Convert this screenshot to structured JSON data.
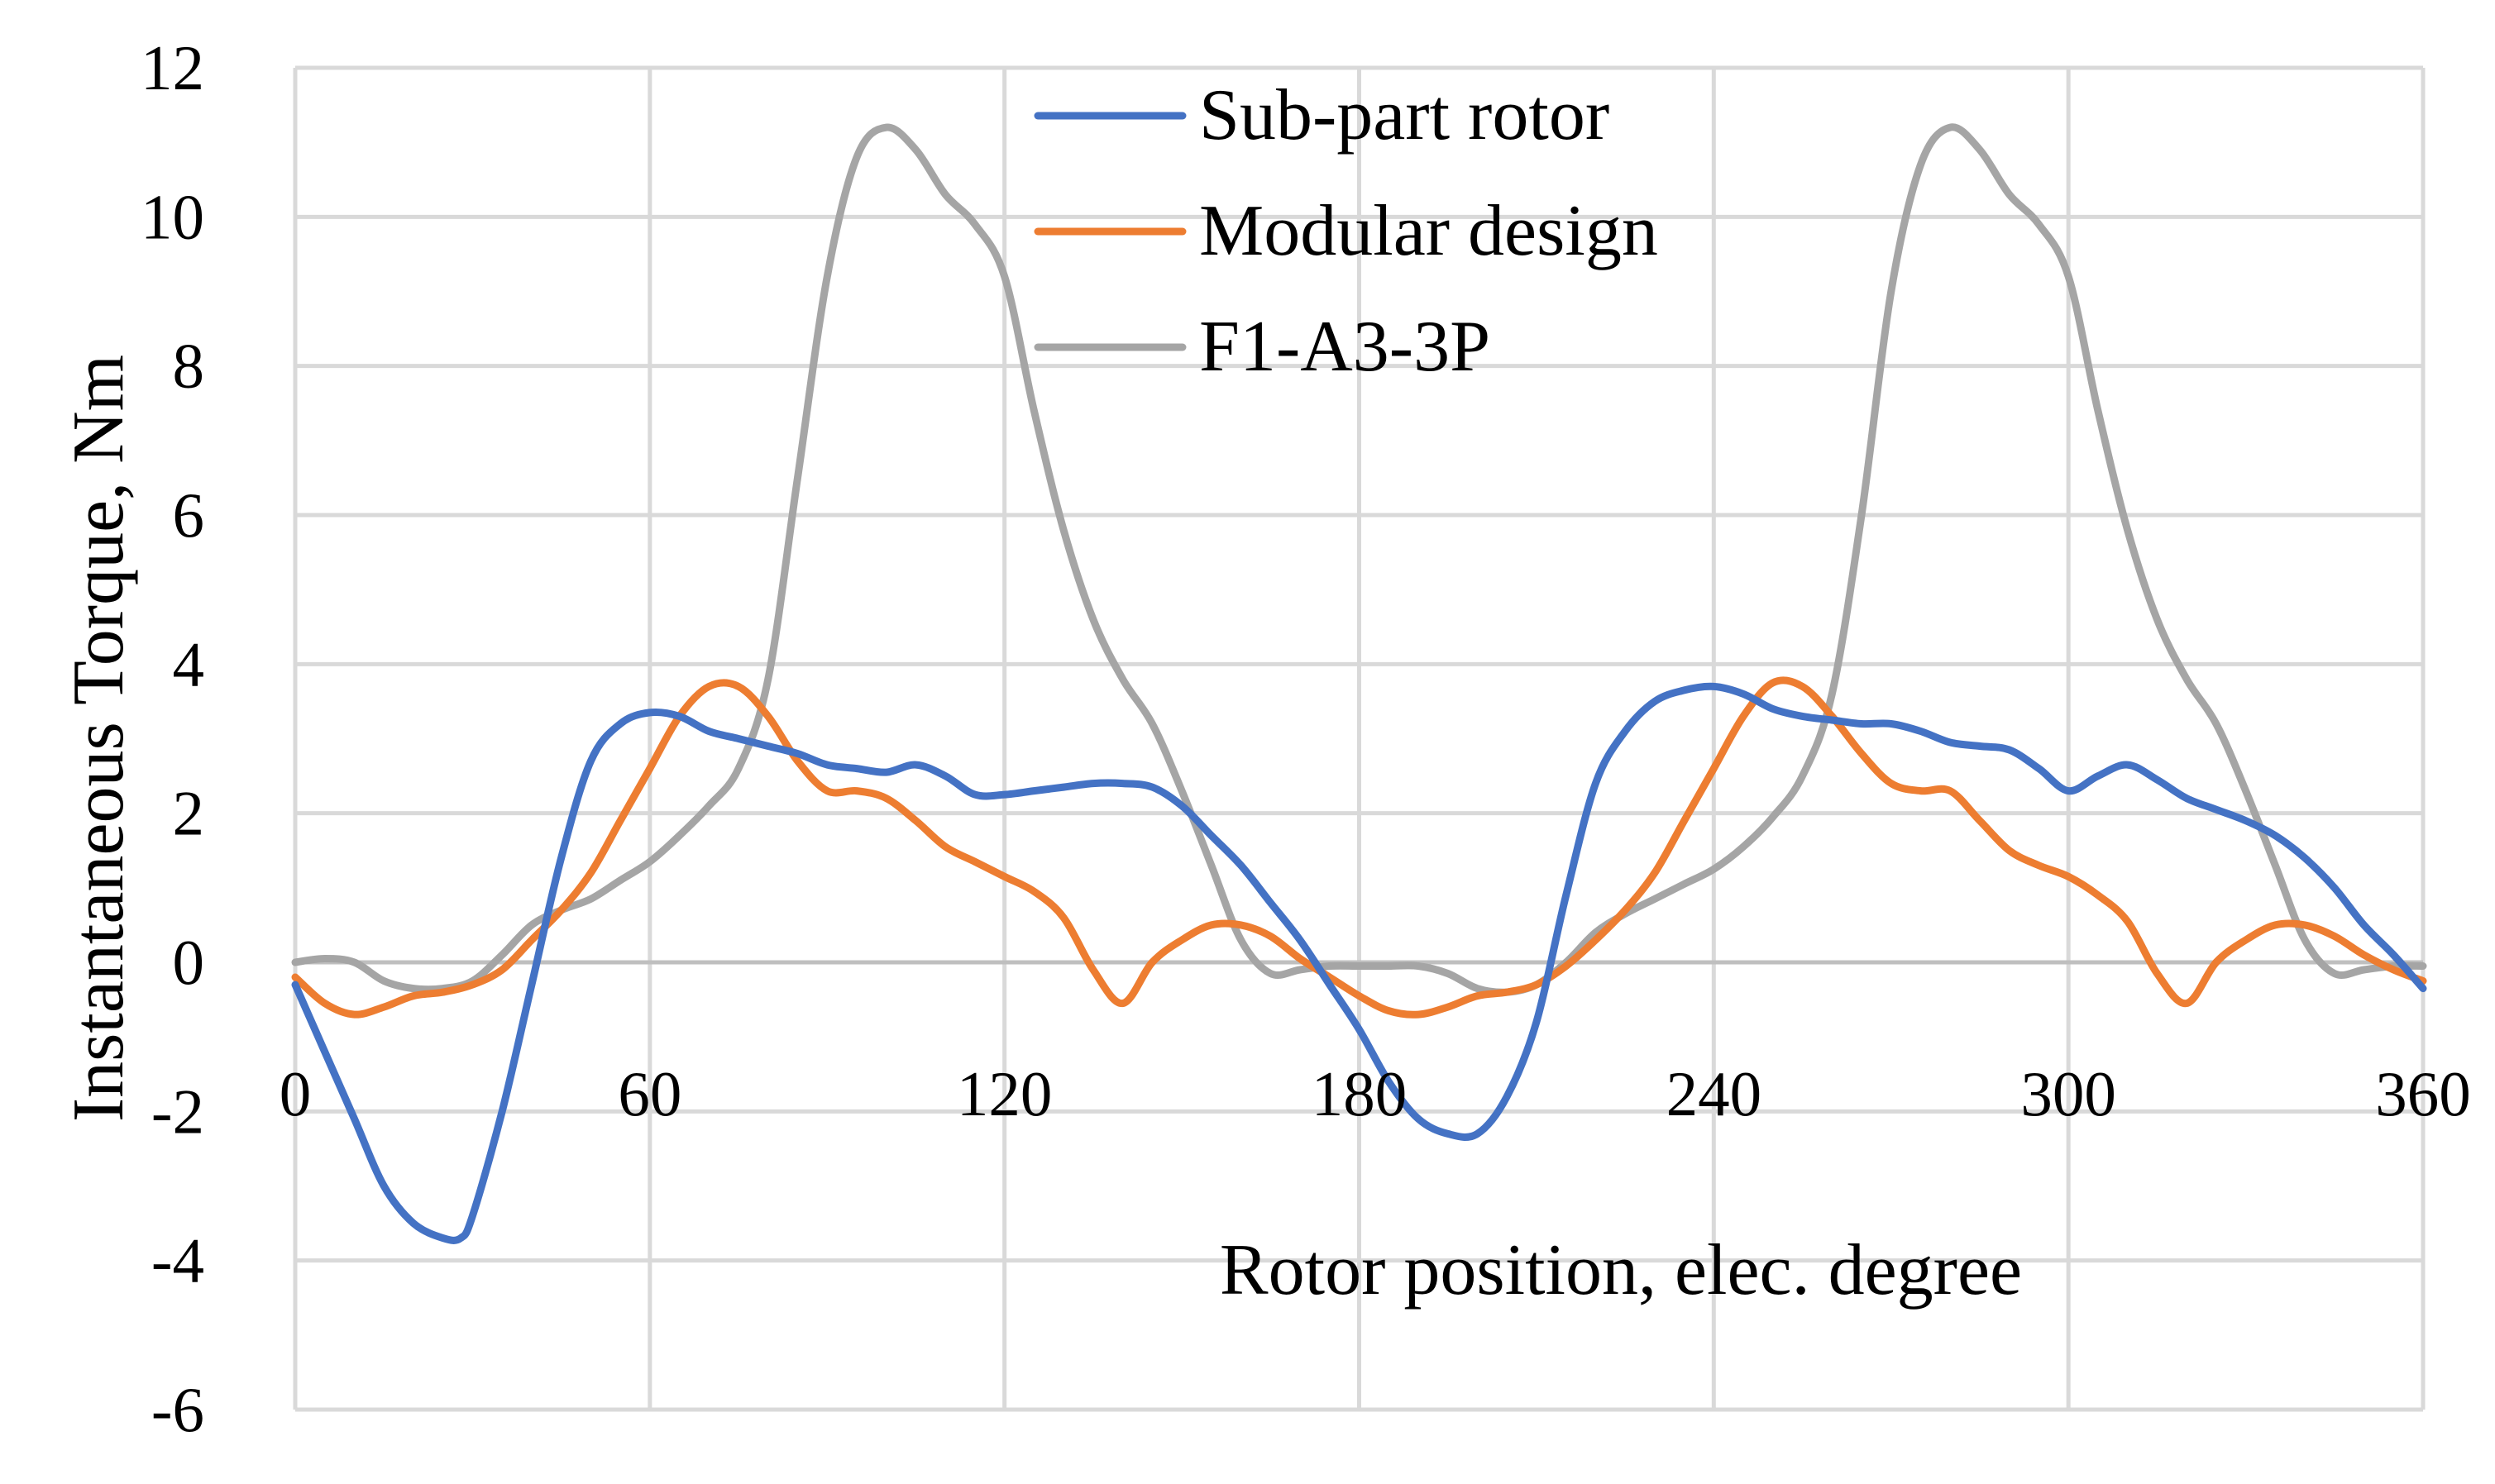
{
  "chart_data": {
    "type": "line",
    "xlabel": "Rotor position, elec. degree",
    "ylabel": "Instantaneous Torque, Nm",
    "xlim": [
      0,
      360
    ],
    "ylim": [
      -6,
      12
    ],
    "xticks": [
      0,
      60,
      120,
      180,
      240,
      300,
      360
    ],
    "yticks": [
      -6,
      -4,
      -2,
      0,
      2,
      4,
      6,
      8,
      10,
      12
    ],
    "grid": true,
    "legend_position": "top-center",
    "series": [
      {
        "name": "Sub-part rotor",
        "color": "#4472C4",
        "x": [
          0,
          5,
          10,
          15,
          20,
          25,
          28,
          30,
          35,
          40,
          45,
          50,
          55,
          60,
          65,
          70,
          75,
          80,
          85,
          90,
          95,
          100,
          105,
          110,
          115,
          120,
          125,
          130,
          135,
          140,
          145,
          150,
          155,
          160,
          165,
          170,
          175,
          180,
          185,
          190,
          195,
          200,
          205,
          210,
          215,
          220,
          225,
          230,
          235,
          240,
          245,
          250,
          255,
          260,
          265,
          270,
          275,
          280,
          285,
          290,
          295,
          300,
          305,
          310,
          315,
          320,
          325,
          330,
          335,
          340,
          345,
          350,
          355,
          360
        ],
        "y": [
          -0.3,
          -1.2,
          -2.1,
          -3.0,
          -3.5,
          -3.7,
          -3.7,
          -3.4,
          -2.0,
          -0.3,
          1.4,
          2.7,
          3.2,
          3.35,
          3.3,
          3.1,
          3.0,
          2.9,
          2.8,
          2.65,
          2.6,
          2.55,
          2.65,
          2.5,
          2.25,
          2.25,
          2.3,
          2.35,
          2.4,
          2.4,
          2.35,
          2.1,
          1.7,
          1.3,
          0.8,
          0.3,
          -0.3,
          -0.9,
          -1.6,
          -2.1,
          -2.3,
          -2.3,
          -1.8,
          -0.8,
          0.9,
          2.4,
          3.1,
          3.5,
          3.65,
          3.7,
          3.6,
          3.4,
          3.3,
          3.25,
          3.2,
          3.2,
          3.1,
          2.95,
          2.9,
          2.85,
          2.6,
          2.3,
          2.5,
          2.65,
          2.45,
          2.2,
          2.05,
          1.9,
          1.7,
          1.4,
          1.0,
          0.5,
          0.1,
          -0.35
        ]
      },
      {
        "name": "Modular design",
        "color": "#ED7D31",
        "x": [
          0,
          5,
          10,
          15,
          20,
          25,
          30,
          35,
          40,
          45,
          50,
          55,
          60,
          65,
          70,
          75,
          80,
          85,
          90,
          95,
          100,
          105,
          110,
          115,
          120,
          125,
          130,
          135,
          140,
          145,
          150,
          155,
          160,
          165,
          170,
          175,
          180,
          185,
          190,
          195,
          200,
          205,
          210,
          215,
          220,
          225,
          230,
          235,
          240,
          245,
          250,
          255,
          260,
          265,
          270,
          275,
          280,
          285,
          290,
          295,
          300,
          305,
          310,
          315,
          320,
          325,
          330,
          335,
          340,
          345,
          350,
          355,
          360
        ],
        "y": [
          -0.2,
          -0.55,
          -0.7,
          -0.6,
          -0.45,
          -0.4,
          -0.3,
          -0.1,
          0.3,
          0.7,
          1.2,
          1.9,
          2.6,
          3.3,
          3.7,
          3.7,
          3.3,
          2.7,
          2.3,
          2.3,
          2.2,
          1.9,
          1.55,
          1.35,
          1.15,
          0.95,
          0.6,
          -0.1,
          -0.55,
          0.0,
          0.3,
          0.5,
          0.5,
          0.35,
          0.05,
          -0.2,
          -0.45,
          -0.65,
          -0.7,
          -0.6,
          -0.45,
          -0.4,
          -0.3,
          -0.05,
          0.3,
          0.7,
          1.2,
          1.9,
          2.6,
          3.3,
          3.75,
          3.7,
          3.3,
          2.8,
          2.4,
          2.3,
          2.3,
          1.9,
          1.5,
          1.3,
          1.15,
          0.9,
          0.55,
          -0.15,
          -0.55,
          0.0,
          0.3,
          0.5,
          0.5,
          0.35,
          0.1,
          -0.1,
          -0.25
        ]
      },
      {
        "name": "F1-A3-3P",
        "color": "#A5A5A5",
        "x": [
          0,
          5,
          10,
          15,
          20,
          25,
          30,
          35,
          40,
          45,
          50,
          55,
          60,
          65,
          70,
          75,
          80,
          85,
          90,
          95,
          100,
          105,
          110,
          115,
          120,
          125,
          130,
          135,
          140,
          145,
          150,
          155,
          160,
          165,
          170,
          175,
          180,
          185,
          190,
          195,
          200,
          205,
          210,
          215,
          220,
          225,
          230,
          235,
          240,
          245,
          250,
          255,
          260,
          265,
          270,
          275,
          280,
          285,
          290,
          295,
          300,
          305,
          310,
          315,
          320,
          325,
          330,
          335,
          340,
          345,
          350,
          355,
          360
        ],
        "y": [
          0.0,
          0.05,
          0.0,
          -0.25,
          -0.35,
          -0.35,
          -0.25,
          0.1,
          0.5,
          0.7,
          0.85,
          1.1,
          1.35,
          1.7,
          2.1,
          2.6,
          3.8,
          6.5,
          9.2,
          10.8,
          11.2,
          10.9,
          10.3,
          9.9,
          9.2,
          7.4,
          5.8,
          4.6,
          3.8,
          3.2,
          2.3,
          1.3,
          0.3,
          -0.15,
          -0.1,
          -0.05,
          -0.05,
          -0.05,
          -0.05,
          -0.15,
          -0.35,
          -0.4,
          -0.3,
          0.0,
          0.4,
          0.65,
          0.85,
          1.05,
          1.25,
          1.55,
          1.95,
          2.5,
          3.6,
          6.0,
          9.0,
          10.7,
          11.2,
          10.9,
          10.3,
          9.9,
          9.2,
          7.4,
          5.8,
          4.6,
          3.8,
          3.2,
          2.3,
          1.3,
          0.3,
          -0.15,
          -0.1,
          -0.05,
          -0.05
        ]
      }
    ]
  }
}
